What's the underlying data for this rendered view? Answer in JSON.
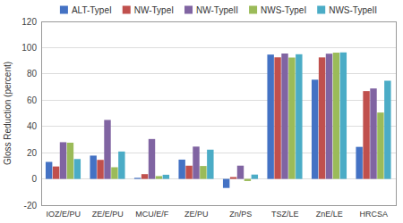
{
  "chart_data": {
    "type": "bar",
    "categories": [
      "IOZ/E/PU",
      "ZE/E/PU",
      "MCU/E/F",
      "ZE/PU",
      "Zn/PS",
      "TSZ/LE",
      "ZnE/LE",
      "HRCSA"
    ],
    "series": [
      {
        "name": "ALT-TypeI",
        "color": "#4472C4",
        "values": [
          12.96,
          17.76,
          0.82,
          14.7,
          -6.88,
          94.73,
          75.6,
          24.41
        ]
      },
      {
        "name": "NW-TypeI",
        "color": "#C0504D",
        "values": [
          9.47,
          14.51,
          3.65,
          10.07,
          1.42,
          92.63,
          92.57,
          66.9
        ]
      },
      {
        "name": "NW-TypeII",
        "color": "#8064A2",
        "values": [
          27.96,
          44.93,
          30.4,
          24.62,
          10.1,
          95.54,
          95.39,
          68.91
        ]
      },
      {
        "name": "NWS-TypeI",
        "color": "#9BBB59",
        "values": [
          27.6,
          8.89,
          2.13,
          9.83,
          -1.61,
          92.47,
          96.2,
          50.57
        ]
      },
      {
        "name": "NWS-TypeII",
        "color": "#4BACC6",
        "values": [
          15.15,
          20.87,
          3.17,
          22.28,
          3.3,
          94.97,
          96.39,
          74.81
        ]
      }
    ],
    "y_label": "Gloss Reduction (percent)",
    "ylim": [
      -20,
      120
    ],
    "yticks": [
      -20,
      0,
      20,
      40,
      60,
      80,
      100,
      120
    ],
    "grid": true,
    "legend": "top"
  }
}
